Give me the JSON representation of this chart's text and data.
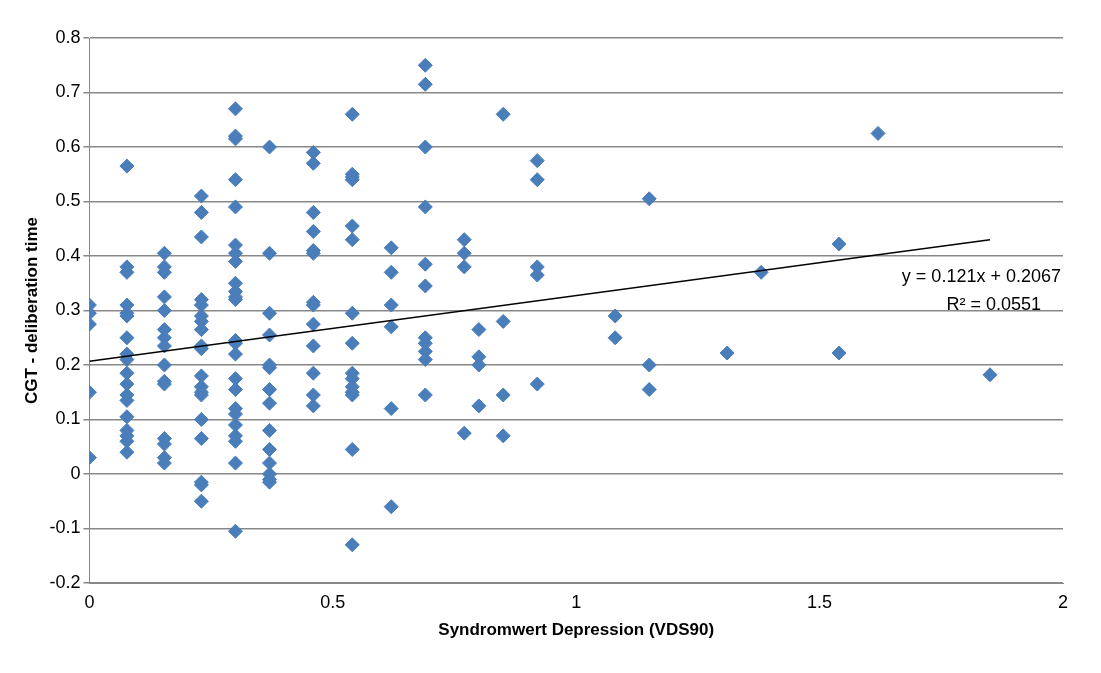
{
  "chart_data": {
    "type": "scatter",
    "xlabel": "Syndromwert Depression (VDS90)",
    "ylabel": "CGT - deliberation time",
    "xlim": [
      0,
      2
    ],
    "xticks": [
      0,
      0.5,
      1,
      1.5,
      2
    ],
    "ylim": [
      -0.2,
      0.8
    ],
    "yticks": [
      -0.2,
      -0.1,
      0,
      0.1,
      0.2,
      0.3,
      0.4,
      0.5,
      0.6,
      0.7,
      0.8
    ],
    "grid": "y",
    "annotations": [
      "y = 0.121x + 0.2067",
      "R² = 0.0551"
    ],
    "series": [
      {
        "marker": "diamond",
        "color": "#4a7ebb",
        "x": [
          0,
          0,
          0,
          0,
          0,
          0.077,
          0.077,
          0.077,
          0.077,
          0.077,
          0.077,
          0.077,
          0.077,
          0.077,
          0.077,
          0.077,
          0.077,
          0.077,
          0.077,
          0.077,
          0.077,
          0.077,
          0.077,
          0.154,
          0.154,
          0.154,
          0.154,
          0.154,
          0.154,
          0.154,
          0.154,
          0.154,
          0.154,
          0.154,
          0.154,
          0.154,
          0.154,
          0.154,
          0.23,
          0.23,
          0.23,
          0.23,
          0.23,
          0.23,
          0.23,
          0.23,
          0.23,
          0.23,
          0.23,
          0.23,
          0.23,
          0.23,
          0.23,
          0.23,
          0.23,
          0.23,
          0.23,
          0.3,
          0.3,
          0.3,
          0.3,
          0.3,
          0.3,
          0.3,
          0.3,
          0.3,
          0.3,
          0.3,
          0.3,
          0.3,
          0.3,
          0.3,
          0.3,
          0.3,
          0.3,
          0.3,
          0.3,
          0.3,
          0.3,
          0.3,
          0.3,
          0.37,
          0.37,
          0.37,
          0.37,
          0.37,
          0.37,
          0.37,
          0.37,
          0.37,
          0.37,
          0.37,
          0.37,
          0.37,
          0.37,
          0.46,
          0.46,
          0.46,
          0.46,
          0.46,
          0.46,
          0.46,
          0.46,
          0.46,
          0.46,
          0.46,
          0.46,
          0.46,
          0.54,
          0.54,
          0.54,
          0.54,
          0.54,
          0.54,
          0.54,
          0.54,
          0.54,
          0.54,
          0.54,
          0.54,
          0.54,
          0.54,
          0.54,
          0.62,
          0.62,
          0.62,
          0.62,
          0.62,
          0.62,
          0.69,
          0.69,
          0.69,
          0.69,
          0.69,
          0.69,
          0.69,
          0.69,
          0.69,
          0.69,
          0.69,
          0.77,
          0.77,
          0.77,
          0.77,
          0.8,
          0.8,
          0.8,
          0.8,
          0.85,
          0.85,
          0.85,
          0.85,
          0.92,
          0.92,
          0.92,
          0.92,
          0.92,
          1.08,
          1.08,
          1.15,
          1.15,
          1.15,
          1.31,
          1.38,
          1.54,
          1.54,
          1.62,
          1.85
        ],
        "values": [
          0.31,
          0.295,
          0.275,
          0.15,
          0.03,
          0.565,
          0.38,
          0.37,
          0.31,
          0.295,
          0.29,
          0.25,
          0.22,
          0.21,
          0.185,
          0.165,
          0.145,
          0.135,
          0.105,
          0.08,
          0.07,
          0.06,
          0.04,
          0.405,
          0.38,
          0.37,
          0.325,
          0.3,
          0.265,
          0.25,
          0.235,
          0.2,
          0.17,
          0.165,
          0.065,
          0.055,
          0.03,
          0.02,
          0.51,
          0.48,
          0.435,
          0.32,
          0.31,
          0.29,
          0.28,
          0.265,
          0.235,
          0.23,
          0.18,
          0.16,
          0.15,
          0.145,
          0.1,
          0.065,
          -0.015,
          -0.02,
          -0.05,
          0.67,
          0.62,
          0.615,
          0.54,
          0.49,
          0.42,
          0.405,
          0.39,
          0.35,
          0.335,
          0.325,
          0.32,
          0.245,
          0.24,
          0.22,
          0.175,
          0.155,
          0.12,
          0.11,
          0.09,
          0.07,
          0.06,
          0.02,
          -0.105,
          0.6,
          0.405,
          0.295,
          0.255,
          0.2,
          0.195,
          0.155,
          0.13,
          0.08,
          0.045,
          0.02,
          0,
          -0.01,
          -0.015,
          0.59,
          0.57,
          0.48,
          0.445,
          0.41,
          0.405,
          0.315,
          0.31,
          0.275,
          0.235,
          0.185,
          0.145,
          0.125,
          0.66,
          0.55,
          0.545,
          0.54,
          0.455,
          0.43,
          0.295,
          0.24,
          0.185,
          0.175,
          0.16,
          0.15,
          0.145,
          0.045,
          -0.13,
          0.415,
          0.37,
          0.31,
          0.27,
          0.12,
          -0.06,
          0.75,
          0.715,
          0.6,
          0.49,
          0.385,
          0.345,
          0.25,
          0.24,
          0.225,
          0.21,
          0.145,
          0.43,
          0.405,
          0.38,
          0.075,
          0.265,
          0.215,
          0.2,
          0.125,
          0.66,
          0.28,
          0.145,
          0.07,
          0.575,
          0.54,
          0.38,
          0.365,
          0.165,
          0.29,
          0.25,
          0.505,
          0.2,
          0.155,
          0.222,
          0.37,
          0.422,
          0.222,
          0.625,
          0.182
        ]
      },
      {
        "type": "line",
        "marker": "none",
        "color": "#000000",
        "x": [
          0,
          1.85
        ],
        "values": [
          0.207,
          0.43
        ]
      }
    ]
  }
}
